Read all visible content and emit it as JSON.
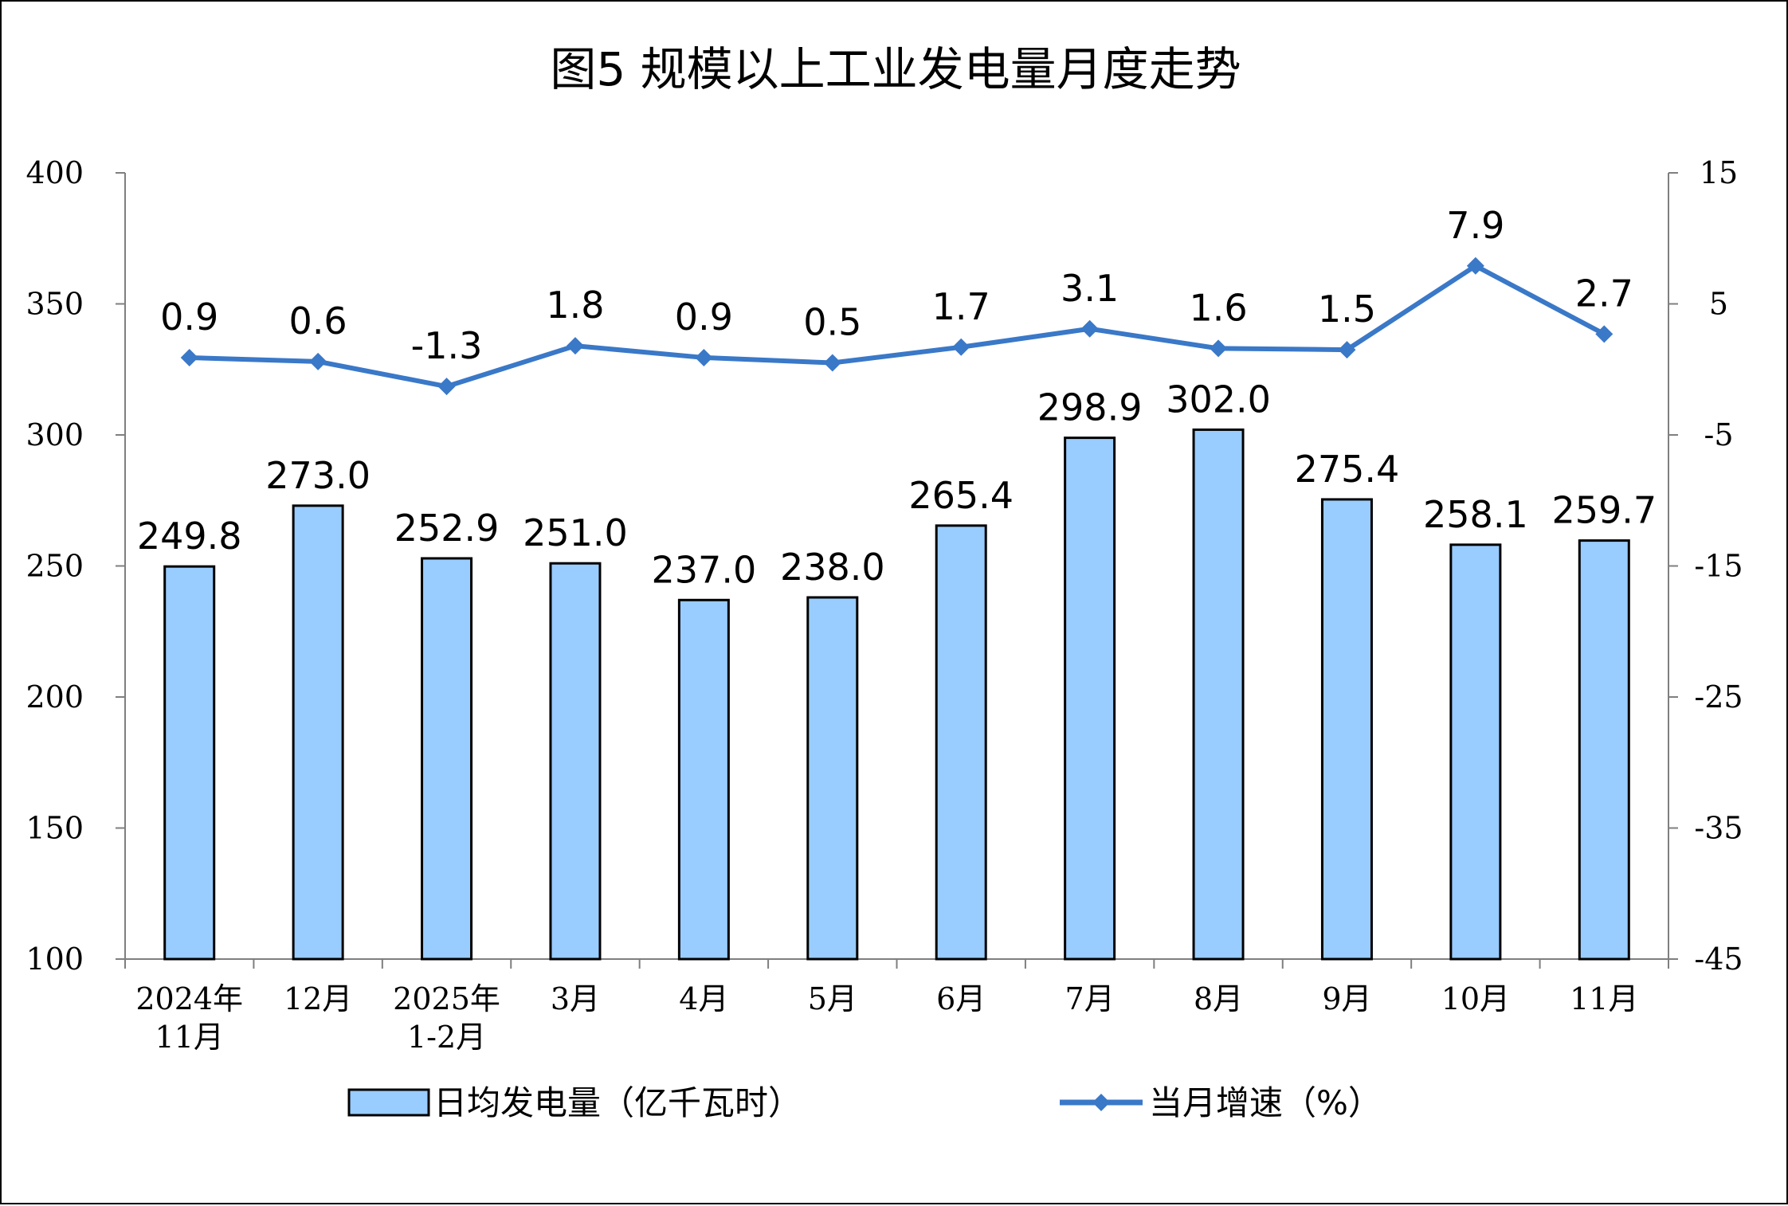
{
  "chart_data": {
    "type": "bar",
    "title": "图5  规模以上工业发电量月度走势",
    "categories": [
      [
        "2024年",
        "11月"
      ],
      [
        "12月"
      ],
      [
        "2025年",
        "1-2月"
      ],
      [
        "3月"
      ],
      [
        "4月"
      ],
      [
        "5月"
      ],
      [
        "6月"
      ],
      [
        "7月"
      ],
      [
        "8月"
      ],
      [
        "9月"
      ],
      [
        "10月"
      ],
      [
        "11月"
      ]
    ],
    "series": [
      {
        "name": "日均发电量（亿千瓦时）",
        "type": "bar",
        "axis": "left",
        "color": "#99CCFF",
        "values": [
          249.8,
          273.0,
          252.9,
          251.0,
          237.0,
          238.0,
          265.4,
          298.9,
          302.0,
          275.4,
          258.1,
          259.7
        ],
        "labels": [
          "249.8",
          "273.0",
          "252.9",
          "251.0",
          "237.0",
          "238.0",
          "265.4",
          "298.9",
          "302.0",
          "275.4",
          "258.1",
          "259.7"
        ]
      },
      {
        "name": "当月增速（%）",
        "type": "line",
        "axis": "right",
        "color": "#3A78C8",
        "values": [
          0.9,
          0.6,
          -1.3,
          1.8,
          0.9,
          0.5,
          1.7,
          3.1,
          1.6,
          1.5,
          7.9,
          2.7
        ],
        "labels": [
          "0.9",
          "0.6",
          "-1.3",
          "1.8",
          "0.9",
          "0.5",
          "1.7",
          "3.1",
          "1.6",
          "1.5",
          "7.9",
          "2.7"
        ]
      }
    ],
    "y_left": {
      "min": 100,
      "max": 400,
      "ticks": [
        "100",
        "150",
        "200",
        "250",
        "300",
        "350",
        "400"
      ]
    },
    "y_right": {
      "min": -45,
      "max": 15,
      "ticks": [
        "-45",
        "-35",
        "-25",
        "-15",
        "-5",
        "5",
        "15"
      ]
    },
    "legend": {
      "placement": "bottom"
    },
    "grid": false
  }
}
